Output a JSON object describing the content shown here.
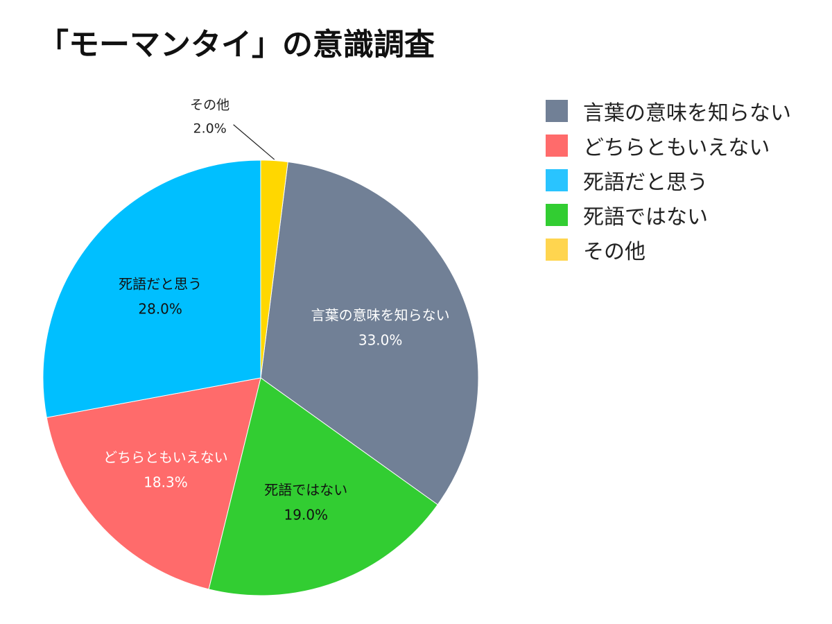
{
  "chart_data": {
    "type": "pie",
    "title": "「モーマンタイ」の意識調査",
    "slices": [
      {
        "label": "言葉の意味を知らない",
        "value": 33.0,
        "display": "33.0%",
        "color": "#718096",
        "label_color": "#ffffff"
      },
      {
        "label": "死語ではない",
        "value": 19.0,
        "display": "19.0%",
        "color": "#32cd32",
        "label_color": "#111111"
      },
      {
        "label": "どちらともいえない",
        "value": 18.3,
        "display": "18.3%",
        "color": "#ff6b6b",
        "label_color": "#ffffff"
      },
      {
        "label": "死語だと思う",
        "value": 28.0,
        "display": "28.0%",
        "color": "#00bfff",
        "label_color": "#111111"
      },
      {
        "label": "その他",
        "value": 2.0,
        "display": "2.0%",
        "color": "#ffd700",
        "label_color": "#111111"
      }
    ],
    "legend": {
      "position": "right",
      "items": [
        {
          "label": "言葉の意味を知らない",
          "color": "#718096"
        },
        {
          "label": "どちらともいえない",
          "color": "#ff6b6b"
        },
        {
          "label": "死語だと思う",
          "color": "#29c4ff"
        },
        {
          "label": "死語ではない",
          "color": "#32cd32"
        },
        {
          "label": "その他",
          "color": "#ffd54f"
        }
      ]
    }
  }
}
